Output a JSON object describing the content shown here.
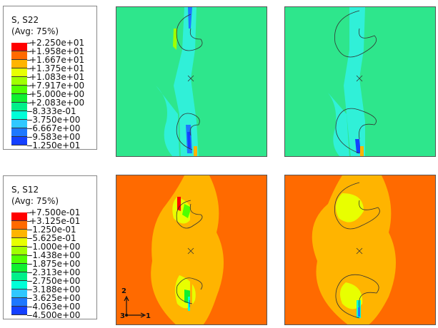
{
  "legends": [
    {
      "title": "S, S22",
      "subtitle": "(Avg: 75%)",
      "values": [
        "+2.250e+01",
        "+1.958e+01",
        "+1.667e+01",
        "+1.375e+01",
        "+1.083e+01",
        "+7.917e+00",
        "+5.000e+00",
        "+2.083e+00",
        "-8.333e-01",
        "-3.750e+00",
        "-6.667e+00",
        "-9.583e+00",
        "-1.250e+01"
      ]
    },
    {
      "title": "S, S12",
      "subtitle": "(Avg: 75%)",
      "values": [
        "+7.500e-01",
        "+3.125e-01",
        "-1.250e-01",
        "-5.625e-01",
        "-1.000e+00",
        "-1.438e+00",
        "-1.875e+00",
        "-2.313e+00",
        "-2.750e+00",
        "-3.188e+00",
        "-3.625e+00",
        "-4.063e+00",
        "-4.500e+00"
      ]
    }
  ],
  "colors": [
    "#ff0000",
    "#ff6a00",
    "#ffb400",
    "#e8ff00",
    "#a0ff00",
    "#50ff00",
    "#10f030",
    "#00f08a",
    "#00ffd8",
    "#30c8ff",
    "#1e78ff",
    "#1440ff",
    "#0000ff"
  ],
  "triad": {
    "y": "2",
    "x": "1",
    "z": "3"
  }
}
